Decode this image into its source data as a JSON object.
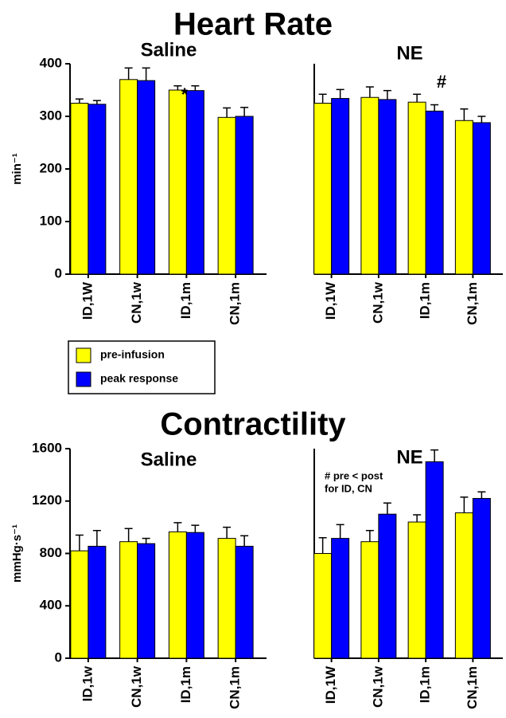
{
  "headings": [
    "Heart Rate",
    "Contractility"
  ],
  "chart_data": [
    {
      "type": "bar",
      "title": "Saline",
      "ylabel": "min⁻¹",
      "categories": [
        "ID,1W",
        "CN,1w",
        "ID,1m",
        "CN,1m"
      ],
      "series": [
        {
          "name": "pre-infusion",
          "color": "#ffff00",
          "values": [
            325,
            370,
            350,
            298
          ],
          "errors": [
            8,
            22,
            8,
            18
          ]
        },
        {
          "name": "peak response",
          "color": "#0000ff",
          "values": [
            323,
            368,
            349,
            300
          ],
          "errors": [
            7,
            24,
            9,
            17
          ]
        }
      ],
      "ylim": [
        0,
        400
      ],
      "yticks": [
        0,
        100,
        200,
        300,
        400
      ],
      "annotations": [
        "*"
      ],
      "legend": true
    },
    {
      "type": "bar",
      "title": "NE",
      "categories": [
        "ID,1W",
        "CN,1w",
        "ID,1m",
        "CN,1m"
      ],
      "series": [
        {
          "color": "#ffff00",
          "values": [
            325,
            336,
            327,
            292
          ],
          "errors": [
            17,
            20,
            15,
            22
          ]
        },
        {
          "color": "#0000ff",
          "values": [
            334,
            332,
            310,
            288
          ],
          "errors": [
            17,
            17,
            12,
            12
          ]
        }
      ],
      "ylim": [
        0,
        400
      ],
      "annotations": [
        "#"
      ]
    },
    {
      "type": "bar",
      "title": "Saline",
      "ylabel": "mmHg·s⁻¹",
      "categories": [
        "ID,1w",
        "CN,1w",
        "ID,1m",
        "CN,1m"
      ],
      "series": [
        {
          "color": "#ffff00",
          "values": [
            820,
            890,
            965,
            915
          ],
          "errors": [
            120,
            100,
            70,
            85
          ]
        },
        {
          "color": "#0000ff",
          "values": [
            855,
            875,
            960,
            855
          ],
          "errors": [
            120,
            40,
            55,
            80
          ]
        }
      ],
      "ylim": [
        0,
        1600
      ],
      "yticks": [
        0,
        400,
        800,
        1200,
        1600
      ]
    },
    {
      "type": "bar",
      "title": "NE",
      "categories": [
        "ID,1W",
        "CN,1w",
        "ID,1m",
        "CN,1m"
      ],
      "series": [
        {
          "color": "#ffff00",
          "values": [
            800,
            890,
            1040,
            1110
          ],
          "errors": [
            120,
            85,
            55,
            120
          ]
        },
        {
          "color": "#0000ff",
          "values": [
            915,
            1100,
            1500,
            1220
          ],
          "errors": [
            105,
            85,
            90,
            50
          ]
        }
      ],
      "ylim": [
        0,
        1600
      ],
      "annotations": [
        "# pre < post",
        "for ID, CN"
      ]
    }
  ]
}
